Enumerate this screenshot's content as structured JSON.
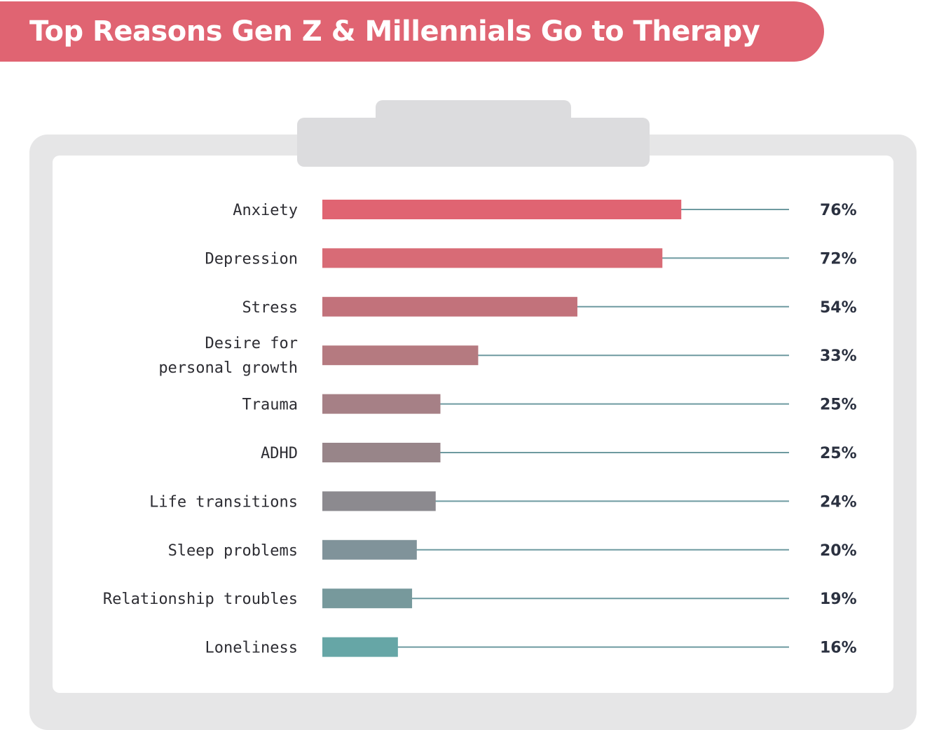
{
  "title": "Top Reasons Gen Z & Millennials Go to Therapy",
  "colors": {
    "banner": "#e06472",
    "track_line": "#6e9aa0",
    "bars": [
      "#e06472",
      "#d86b76",
      "#c2727b",
      "#b57a80",
      "#a68086",
      "#988589",
      "#8c8a8f",
      "#80939a",
      "#77999c",
      "#66a6a6"
    ]
  },
  "chart_data": {
    "type": "bar",
    "orientation": "horizontal",
    "categories": [
      "Anxiety",
      "Depression",
      "Stress",
      "Desire for personal growth",
      "Trauma",
      "ADHD",
      "Life transitions",
      "Sleep problems",
      "Relationship troubles",
      "Loneliness"
    ],
    "category_lines": [
      [
        "Anxiety"
      ],
      [
        "Depression"
      ],
      [
        "Stress"
      ],
      [
        "Desire for",
        "personal growth"
      ],
      [
        "Trauma"
      ],
      [
        "ADHD"
      ],
      [
        "Life transitions"
      ],
      [
        "Sleep problems"
      ],
      [
        "Relationship troubles"
      ],
      [
        "Loneliness"
      ]
    ],
    "values": [
      76,
      72,
      54,
      33,
      25,
      25,
      24,
      20,
      19,
      16
    ],
    "value_labels": [
      "76%",
      "72%",
      "54%",
      "33%",
      "25%",
      "25%",
      "24%",
      "20%",
      "19%",
      "16%"
    ],
    "unit": "%",
    "xlim": [
      0,
      100
    ],
    "grid": false,
    "legend": "none"
  }
}
